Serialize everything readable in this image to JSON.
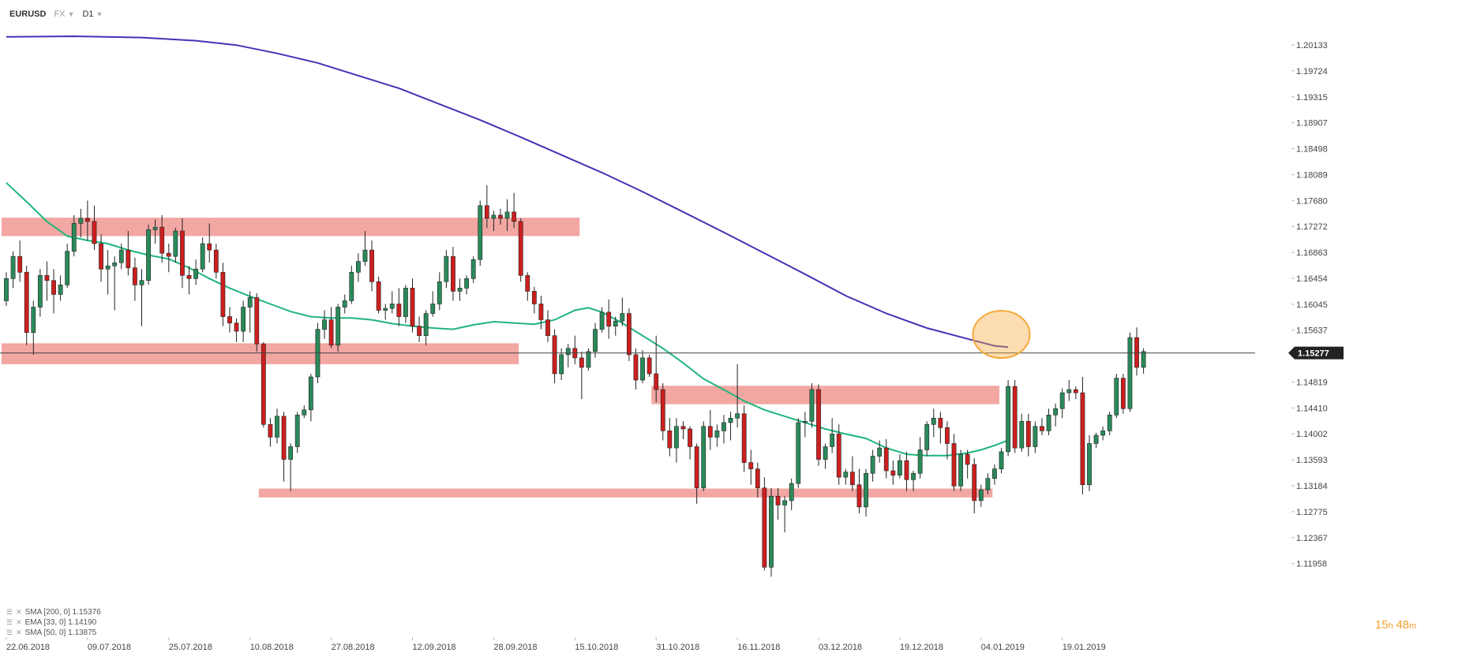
{
  "header": {
    "symbol": "EURUSD",
    "market": "FX",
    "timeframe": "D1"
  },
  "indicators": [
    {
      "label": "SMA [200, 0] 1.15376"
    },
    {
      "label": "EMA [33, 0] 1.14190"
    },
    {
      "label": "SMA [50, 0] 1.13875"
    }
  ],
  "timer": {
    "h": "15",
    "h_unit": "h",
    "m": "48",
    "m_unit": "m"
  },
  "colors": {
    "up": "#2a8a5a",
    "down": "#cc1f1f",
    "sma200": "#4b2fb5",
    "sma50": "#1fb57a",
    "zone": "#ee8a84",
    "highlight": "#f5a93c",
    "price_tag": "#222222"
  },
  "chart_data": {
    "type": "candlestick",
    "y_ticks": [
      "1.20133",
      "1.19724",
      "1.19315",
      "1.18907",
      "1.18498",
      "1.18089",
      "1.17680",
      "1.17272",
      "1.16863",
      "1.16454",
      "1.16045",
      "1.15637",
      "1.14819",
      "1.14410",
      "1.14002",
      "1.13593",
      "1.13184",
      "1.12775",
      "1.12367",
      "1.11958"
    ],
    "ylim": [
      1.118,
      1.204
    ],
    "x_labels": [
      "22.06.2018",
      "09.07.2018",
      "25.07.2018",
      "10.08.2018",
      "27.08.2018",
      "12.09.2018",
      "28.09.2018",
      "15.10.2018",
      "31.10.2018",
      "16.11.2018",
      "03.12.2018",
      "19.12.2018",
      "04.01.2019",
      "19.01.2019"
    ],
    "x_label_steps": [
      0,
      12,
      24,
      36,
      48,
      60,
      72,
      84,
      96,
      108,
      120,
      132,
      144,
      156
    ],
    "current_price": "1.15277",
    "current_price_value": 1.15277,
    "zones": [
      {
        "x_from": 0,
        "x_to": 84,
        "y_low": 1.1712,
        "y_high": 1.1741
      },
      {
        "x_from": 0,
        "x_to": 75,
        "y_low": 1.151,
        "y_high": 1.1543
      },
      {
        "x_from": 96,
        "x_to": 146,
        "y_low": 1.1447,
        "y_high": 1.1476
      },
      {
        "x_from": 38,
        "x_to": 145,
        "y_low": 1.13,
        "y_high": 1.1314
      }
    ],
    "highlight": {
      "x": 147,
      "y": 1.1557
    },
    "candles": [
      [
        1.161,
        1.1655,
        1.1602,
        1.1645
      ],
      [
        1.1645,
        1.1688,
        1.163,
        1.168
      ],
      [
        1.168,
        1.1705,
        1.164,
        1.1655
      ],
      [
        1.1655,
        1.1665,
        1.154,
        1.156
      ],
      [
        1.156,
        1.161,
        1.1525,
        1.16
      ],
      [
        1.16,
        1.166,
        1.1585,
        1.165
      ],
      [
        1.165,
        1.1672,
        1.161,
        1.1642
      ],
      [
        1.1642,
        1.166,
        1.159,
        1.162
      ],
      [
        1.162,
        1.165,
        1.161,
        1.1635
      ],
      [
        1.1635,
        1.17,
        1.163,
        1.1688
      ],
      [
        1.1688,
        1.1745,
        1.168,
        1.1732
      ],
      [
        1.1732,
        1.1755,
        1.171,
        1.174
      ],
      [
        1.174,
        1.1768,
        1.1705,
        1.1735
      ],
      [
        1.1735,
        1.176,
        1.169,
        1.17
      ],
      [
        1.17,
        1.1715,
        1.164,
        1.166
      ],
      [
        1.166,
        1.169,
        1.162,
        1.1665
      ],
      [
        1.1665,
        1.168,
        1.1595,
        1.167
      ],
      [
        1.167,
        1.17,
        1.166,
        1.169
      ],
      [
        1.169,
        1.172,
        1.165,
        1.1662
      ],
      [
        1.1662,
        1.1678,
        1.161,
        1.1635
      ],
      [
        1.1635,
        1.166,
        1.157,
        1.1642
      ],
      [
        1.1642,
        1.173,
        1.1635,
        1.1722
      ],
      [
        1.1722,
        1.1738,
        1.17,
        1.1726
      ],
      [
        1.1726,
        1.1745,
        1.167,
        1.1685
      ],
      [
        1.1685,
        1.17,
        1.1655,
        1.168
      ],
      [
        1.168,
        1.1725,
        1.167,
        1.172
      ],
      [
        1.172,
        1.174,
        1.163,
        1.165
      ],
      [
        1.165,
        1.1665,
        1.162,
        1.1645
      ],
      [
        1.1645,
        1.1675,
        1.1635,
        1.166
      ],
      [
        1.166,
        1.171,
        1.1655,
        1.17
      ],
      [
        1.17,
        1.1732,
        1.167,
        1.169
      ],
      [
        1.169,
        1.17,
        1.1645,
        1.1655
      ],
      [
        1.1655,
        1.167,
        1.157,
        1.1585
      ],
      [
        1.1585,
        1.16,
        1.156,
        1.1575
      ],
      [
        1.1575,
        1.1582,
        1.1545,
        1.1562
      ],
      [
        1.1562,
        1.161,
        1.1545,
        1.16
      ],
      [
        1.16,
        1.1625,
        1.156,
        1.1615
      ],
      [
        1.1615,
        1.1622,
        1.153,
        1.1542
      ],
      [
        1.1542,
        1.1545,
        1.141,
        1.1415
      ],
      [
        1.1415,
        1.1425,
        1.138,
        1.1395
      ],
      [
        1.1395,
        1.144,
        1.1385,
        1.1428
      ],
      [
        1.1428,
        1.1435,
        1.1325,
        1.136
      ],
      [
        1.136,
        1.1385,
        1.131,
        1.138
      ],
      [
        1.138,
        1.1435,
        1.137,
        1.143
      ],
      [
        1.143,
        1.1445,
        1.1425,
        1.1438
      ],
      [
        1.1438,
        1.1495,
        1.142,
        1.149
      ],
      [
        1.149,
        1.1575,
        1.148,
        1.1565
      ],
      [
        1.1565,
        1.1595,
        1.155,
        1.158
      ],
      [
        1.158,
        1.16,
        1.1535,
        1.154
      ],
      [
        1.154,
        1.1605,
        1.153,
        1.16
      ],
      [
        1.16,
        1.162,
        1.159,
        1.161
      ],
      [
        1.161,
        1.1665,
        1.1605,
        1.1655
      ],
      [
        1.1655,
        1.1685,
        1.164,
        1.1672
      ],
      [
        1.1672,
        1.172,
        1.1665,
        1.169
      ],
      [
        1.169,
        1.1705,
        1.1625,
        1.164
      ],
      [
        1.164,
        1.1648,
        1.159,
        1.1595
      ],
      [
        1.1595,
        1.1605,
        1.158,
        1.1598
      ],
      [
        1.1598,
        1.1625,
        1.159,
        1.1605
      ],
      [
        1.1605,
        1.163,
        1.157,
        1.1585
      ],
      [
        1.1585,
        1.1635,
        1.1575,
        1.163
      ],
      [
        1.163,
        1.1645,
        1.156,
        1.157
      ],
      [
        1.157,
        1.1585,
        1.1545,
        1.1555
      ],
      [
        1.1555,
        1.1595,
        1.154,
        1.159
      ],
      [
        1.159,
        1.1625,
        1.1585,
        1.1605
      ],
      [
        1.1605,
        1.1655,
        1.1595,
        1.164
      ],
      [
        1.164,
        1.169,
        1.163,
        1.168
      ],
      [
        1.168,
        1.1695,
        1.161,
        1.1625
      ],
      [
        1.1625,
        1.1645,
        1.161,
        1.163
      ],
      [
        1.163,
        1.165,
        1.162,
        1.1645
      ],
      [
        1.1645,
        1.168,
        1.1638,
        1.1675
      ],
      [
        1.1675,
        1.1768,
        1.1665,
        1.176
      ],
      [
        1.176,
        1.1792,
        1.1725,
        1.174
      ],
      [
        1.174,
        1.1752,
        1.172,
        1.1745
      ],
      [
        1.1745,
        1.1755,
        1.173,
        1.174
      ],
      [
        1.174,
        1.177,
        1.172,
        1.175
      ],
      [
        1.175,
        1.178,
        1.1725,
        1.1735
      ],
      [
        1.1735,
        1.174,
        1.164,
        1.165
      ],
      [
        1.165,
        1.1655,
        1.161,
        1.1625
      ],
      [
        1.1625,
        1.1632,
        1.159,
        1.1605
      ],
      [
        1.1605,
        1.1618,
        1.1565,
        1.158
      ],
      [
        1.158,
        1.1595,
        1.1545,
        1.1555
      ],
      [
        1.1555,
        1.1565,
        1.148,
        1.1495
      ],
      [
        1.1495,
        1.1535,
        1.1485,
        1.1525
      ],
      [
        1.1525,
        1.1542,
        1.1505,
        1.1535
      ],
      [
        1.1535,
        1.1555,
        1.151,
        1.152
      ],
      [
        1.152,
        1.153,
        1.1455,
        1.1505
      ],
      [
        1.1505,
        1.1535,
        1.15,
        1.153
      ],
      [
        1.153,
        1.1575,
        1.152,
        1.1565
      ],
      [
        1.1565,
        1.16,
        1.156,
        1.1592
      ],
      [
        1.1592,
        1.1612,
        1.155,
        1.157
      ],
      [
        1.157,
        1.1585,
        1.1555,
        1.1578
      ],
      [
        1.1578,
        1.1615,
        1.157,
        1.159
      ],
      [
        1.159,
        1.1598,
        1.1515,
        1.1525
      ],
      [
        1.1525,
        1.1535,
        1.147,
        1.1485
      ],
      [
        1.1485,
        1.1532,
        1.148,
        1.152
      ],
      [
        1.152,
        1.1525,
        1.149,
        1.1495
      ],
      [
        1.1495,
        1.1555,
        1.145,
        1.147
      ],
      [
        1.147,
        1.148,
        1.139,
        1.1405
      ],
      [
        1.1405,
        1.1425,
        1.1365,
        1.1378
      ],
      [
        1.1378,
        1.1425,
        1.1355,
        1.1412
      ],
      [
        1.1412,
        1.142,
        1.1392,
        1.1408
      ],
      [
        1.1408,
        1.1412,
        1.136,
        1.138
      ],
      [
        1.138,
        1.1385,
        1.129,
        1.1315
      ],
      [
        1.1315,
        1.142,
        1.131,
        1.1412
      ],
      [
        1.1412,
        1.1438,
        1.1375,
        1.1395
      ],
      [
        1.1395,
        1.1415,
        1.138,
        1.1405
      ],
      [
        1.1405,
        1.143,
        1.1385,
        1.1418
      ],
      [
        1.1418,
        1.1435,
        1.139,
        1.1425
      ],
      [
        1.1425,
        1.151,
        1.141,
        1.1432
      ],
      [
        1.1432,
        1.1445,
        1.134,
        1.1355
      ],
      [
        1.1355,
        1.1375,
        1.132,
        1.1345
      ],
      [
        1.1345,
        1.1355,
        1.13,
        1.1315
      ],
      [
        1.1315,
        1.1332,
        1.1185,
        1.119
      ],
      [
        1.119,
        1.1315,
        1.1175,
        1.1302
      ],
      [
        1.1302,
        1.1315,
        1.1265,
        1.1288
      ],
      [
        1.1288,
        1.1302,
        1.1245,
        1.1295
      ],
      [
        1.1295,
        1.133,
        1.128,
        1.1322
      ],
      [
        1.1322,
        1.1425,
        1.1315,
        1.1418
      ],
      [
        1.1418,
        1.1435,
        1.1395,
        1.142
      ],
      [
        1.142,
        1.148,
        1.141,
        1.147
      ],
      [
        1.147,
        1.1478,
        1.135,
        1.136
      ],
      [
        1.136,
        1.1385,
        1.1345,
        1.138
      ],
      [
        1.138,
        1.1425,
        1.137,
        1.14
      ],
      [
        1.14,
        1.1415,
        1.132,
        1.1332
      ],
      [
        1.1332,
        1.1345,
        1.132,
        1.134
      ],
      [
        1.134,
        1.1365,
        1.131,
        1.132
      ],
      [
        1.132,
        1.1345,
        1.1275,
        1.1285
      ],
      [
        1.1285,
        1.1345,
        1.127,
        1.1338
      ],
      [
        1.1338,
        1.1375,
        1.1325,
        1.1365
      ],
      [
        1.1365,
        1.139,
        1.1355,
        1.1378
      ],
      [
        1.1378,
        1.1392,
        1.133,
        1.1342
      ],
      [
        1.1342,
        1.1358,
        1.132,
        1.1335
      ],
      [
        1.1335,
        1.1368,
        1.133,
        1.1358
      ],
      [
        1.1358,
        1.1372,
        1.131,
        1.1328
      ],
      [
        1.1328,
        1.1342,
        1.131,
        1.1338
      ],
      [
        1.1338,
        1.1395,
        1.133,
        1.1375
      ],
      [
        1.1375,
        1.142,
        1.1365,
        1.1415
      ],
      [
        1.1415,
        1.144,
        1.1395,
        1.1425
      ],
      [
        1.1425,
        1.1435,
        1.1385,
        1.141
      ],
      [
        1.141,
        1.142,
        1.136,
        1.1385
      ],
      [
        1.1385,
        1.14,
        1.131,
        1.1318
      ],
      [
        1.1318,
        1.1375,
        1.131,
        1.1368
      ],
      [
        1.1368,
        1.1375,
        1.133,
        1.1352
      ],
      [
        1.1352,
        1.1362,
        1.1275,
        1.1295
      ],
      [
        1.1295,
        1.132,
        1.1285,
        1.1312
      ],
      [
        1.1312,
        1.1338,
        1.1305,
        1.133
      ],
      [
        1.133,
        1.1352,
        1.132,
        1.1345
      ],
      [
        1.1345,
        1.1378,
        1.1338,
        1.1372
      ],
      [
        1.1372,
        1.1485,
        1.1365,
        1.1475
      ],
      [
        1.1475,
        1.1485,
        1.137,
        1.1378
      ],
      [
        1.1378,
        1.1432,
        1.1372,
        1.142
      ],
      [
        1.142,
        1.1432,
        1.1365,
        1.138
      ],
      [
        1.138,
        1.142,
        1.137,
        1.1412
      ],
      [
        1.1412,
        1.1425,
        1.1398,
        1.1405
      ],
      [
        1.1405,
        1.144,
        1.1398,
        1.143
      ],
      [
        1.143,
        1.1448,
        1.1412,
        1.144
      ],
      [
        1.144,
        1.1472,
        1.1425,
        1.1465
      ],
      [
        1.1465,
        1.1485,
        1.1452,
        1.147
      ],
      [
        1.147,
        1.1475,
        1.1455,
        1.1465
      ],
      [
        1.1465,
        1.149,
        1.1305,
        1.132
      ],
      [
        1.132,
        1.1398,
        1.131,
        1.1385
      ],
      [
        1.1385,
        1.1402,
        1.1378,
        1.1398
      ],
      [
        1.1398,
        1.1412,
        1.139,
        1.1405
      ],
      [
        1.1405,
        1.1435,
        1.1398,
        1.143
      ],
      [
        1.143,
        1.1495,
        1.1425,
        1.1488
      ],
      [
        1.1488,
        1.1495,
        1.1432,
        1.144
      ],
      [
        1.144,
        1.156,
        1.1435,
        1.1552
      ],
      [
        1.1552,
        1.1568,
        1.1492,
        1.1505
      ],
      [
        1.1505,
        1.1535,
        1.1495,
        1.153
      ]
    ],
    "sma200": [
      [
        0,
        1.2026
      ],
      [
        10,
        1.2027
      ],
      [
        20,
        1.2025
      ],
      [
        28,
        1.202
      ],
      [
        34,
        1.2013
      ],
      [
        40,
        1.2
      ],
      [
        46,
        1.1985
      ],
      [
        52,
        1.1965
      ],
      [
        58,
        1.1945
      ],
      [
        64,
        1.192
      ],
      [
        70,
        1.1895
      ],
      [
        76,
        1.1868
      ],
      [
        82,
        1.184
      ],
      [
        88,
        1.1812
      ],
      [
        94,
        1.1782
      ],
      [
        100,
        1.175
      ],
      [
        106,
        1.1718
      ],
      [
        112,
        1.1685
      ],
      [
        118,
        1.1652
      ],
      [
        124,
        1.1618
      ],
      [
        130,
        1.159
      ],
      [
        136,
        1.1567
      ],
      [
        142,
        1.155
      ],
      [
        146,
        1.1539
      ],
      [
        148,
        1.1537
      ]
    ],
    "sma50": [
      [
        0,
        1.1796
      ],
      [
        3,
        1.1766
      ],
      [
        6,
        1.1735
      ],
      [
        9,
        1.1712
      ],
      [
        12,
        1.1705
      ],
      [
        15,
        1.17
      ],
      [
        18,
        1.169
      ],
      [
        21,
        1.1682
      ],
      [
        24,
        1.1676
      ],
      [
        27,
        1.1662
      ],
      [
        30,
        1.1645
      ],
      [
        33,
        1.163
      ],
      [
        36,
        1.1617
      ],
      [
        39,
        1.1605
      ],
      [
        42,
        1.1593
      ],
      [
        45,
        1.1585
      ],
      [
        48,
        1.1583
      ],
      [
        51,
        1.1583
      ],
      [
        54,
        1.158
      ],
      [
        57,
        1.1574
      ],
      [
        60,
        1.157
      ],
      [
        63,
        1.1567
      ],
      [
        66,
        1.1565
      ],
      [
        69,
        1.1572
      ],
      [
        72,
        1.1577
      ],
      [
        75,
        1.1575
      ],
      [
        78,
        1.1573
      ],
      [
        81,
        1.158
      ],
      [
        84,
        1.1595
      ],
      [
        86,
        1.1599
      ],
      [
        88,
        1.1592
      ],
      [
        91,
        1.1575
      ],
      [
        94,
        1.1555
      ],
      [
        97,
        1.1535
      ],
      [
        100,
        1.1512
      ],
      [
        103,
        1.1487
      ],
      [
        106,
        1.147
      ],
      [
        109,
        1.1452
      ],
      [
        112,
        1.1438
      ],
      [
        115,
        1.1428
      ],
      [
        118,
        1.1418
      ],
      [
        121,
        1.1408
      ],
      [
        124,
        1.14
      ],
      [
        127,
        1.1393
      ],
      [
        130,
        1.1378
      ],
      [
        133,
        1.1368
      ],
      [
        136,
        1.1366
      ],
      [
        139,
        1.1366
      ],
      [
        142,
        1.137
      ],
      [
        144,
        1.1375
      ],
      [
        146,
        1.1382
      ],
      [
        148,
        1.139
      ]
    ]
  }
}
